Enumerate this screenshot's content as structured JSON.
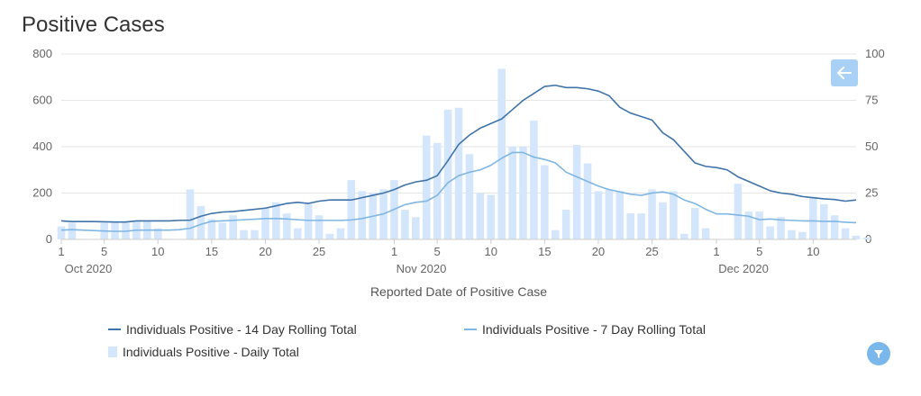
{
  "title": "Positive Cases",
  "chart_data": {
    "type": "bar",
    "title": "Positive Cases",
    "xlabel": "Reported Date of Positive Case",
    "ylabel_left": "",
    "ylabel_right": "",
    "ylim_left": [
      0,
      800
    ],
    "ylim_right": [
      0,
      100
    ],
    "left_ticks": [
      "0",
      "200",
      "400",
      "600",
      "800"
    ],
    "right_ticks": [
      "0",
      "25",
      "50",
      "75",
      "100"
    ],
    "x_tick_labels": [
      {
        "day": 0,
        "label": "1",
        "sub": "Oct 2020"
      },
      {
        "day": 4,
        "label": "5",
        "sub": ""
      },
      {
        "day": 9,
        "label": "10",
        "sub": ""
      },
      {
        "day": 14,
        "label": "15",
        "sub": ""
      },
      {
        "day": 19,
        "label": "20",
        "sub": ""
      },
      {
        "day": 24,
        "label": "25",
        "sub": ""
      },
      {
        "day": 31,
        "label": "1",
        "sub": "Nov 2020"
      },
      {
        "day": 35,
        "label": "5",
        "sub": ""
      },
      {
        "day": 40,
        "label": "10",
        "sub": ""
      },
      {
        "day": 45,
        "label": "15",
        "sub": ""
      },
      {
        "day": 50,
        "label": "20",
        "sub": ""
      },
      {
        "day": 55,
        "label": "25",
        "sub": ""
      },
      {
        "day": 61,
        "label": "1",
        "sub": "Dec 2020"
      },
      {
        "day": 65,
        "label": "5",
        "sub": ""
      },
      {
        "day": 70,
        "label": "10",
        "sub": ""
      }
    ],
    "start_date": "2020-10-01",
    "series": [
      {
        "name": "Individuals Positive - Daily Total",
        "type": "bar",
        "axis": "right",
        "color": "#d4e6fb",
        "values": [
          7,
          9,
          0,
          0,
          9,
          9,
          9,
          10,
          10,
          6,
          0,
          0,
          27,
          18,
          11,
          9,
          13,
          5,
          5,
          17,
          20,
          14,
          6,
          19,
          13,
          3,
          6,
          32,
          26,
          25,
          27,
          32,
          16,
          12,
          56,
          52,
          70,
          71,
          46,
          25,
          24,
          92,
          50,
          50,
          64,
          40,
          5,
          16,
          51,
          41,
          26,
          27,
          26,
          14,
          14,
          27,
          20,
          26,
          3,
          17,
          6,
          0,
          0,
          30,
          15,
          15,
          7,
          12,
          5,
          4,
          23,
          19,
          13,
          6,
          2,
          1
        ],
        "note": "daily totals per date, right axis"
      },
      {
        "name": "Individuals Positive - 14 Day Rolling Total",
        "type": "line",
        "axis": "left",
        "color": "#3f73a9",
        "values": [
          80,
          77,
          77,
          77,
          76,
          75,
          75,
          80,
          80,
          80,
          80,
          82,
          83,
          100,
          112,
          118,
          120,
          125,
          130,
          135,
          145,
          155,
          160,
          155,
          165,
          170,
          170,
          170,
          180,
          190,
          200,
          215,
          235,
          248,
          255,
          275,
          340,
          410,
          450,
          480,
          500,
          520,
          560,
          600,
          630,
          660,
          665,
          655,
          655,
          650,
          640,
          620,
          570,
          545,
          530,
          515,
          460,
          430,
          380,
          330,
          315,
          310,
          300,
          270,
          250,
          230,
          210,
          200,
          195,
          185,
          180,
          175,
          172,
          165,
          170,
          160,
          158,
          158
        ]
      },
      {
        "name": "Individuals Positive - 7 Day Rolling Total",
        "type": "line",
        "axis": "left",
        "color": "#7fb6e3",
        "values": [
          40,
          42,
          40,
          38,
          36,
          35,
          35,
          40,
          40,
          40,
          40,
          42,
          48,
          65,
          78,
          80,
          82,
          85,
          87,
          90,
          90,
          88,
          85,
          82,
          82,
          82,
          82,
          84,
          90,
          100,
          110,
          130,
          150,
          160,
          165,
          190,
          245,
          275,
          290,
          300,
          320,
          350,
          375,
          375,
          355,
          345,
          330,
          290,
          270,
          250,
          230,
          215,
          205,
          195,
          190,
          200,
          205,
          195,
          170,
          155,
          130,
          110,
          110,
          105,
          100,
          85,
          88,
          84,
          82,
          80,
          80,
          78,
          78,
          74,
          72,
          70,
          70,
          70
        ]
      }
    ],
    "legend_position": "bottom",
    "grid": true
  },
  "legend": [
    {
      "label": "Individuals Positive - 14 Day Rolling Total",
      "color": "#3f73a9",
      "kind": "line"
    },
    {
      "label": "Individuals Positive - 7 Day Rolling Total",
      "color": "#7fb6e3",
      "kind": "line"
    },
    {
      "label": "Individuals Positive - Daily Total",
      "color": "#d4e6fb",
      "kind": "bar"
    }
  ],
  "controls": {
    "back_icon": "arrow-left-icon",
    "filter_icon": "filter-icon"
  }
}
